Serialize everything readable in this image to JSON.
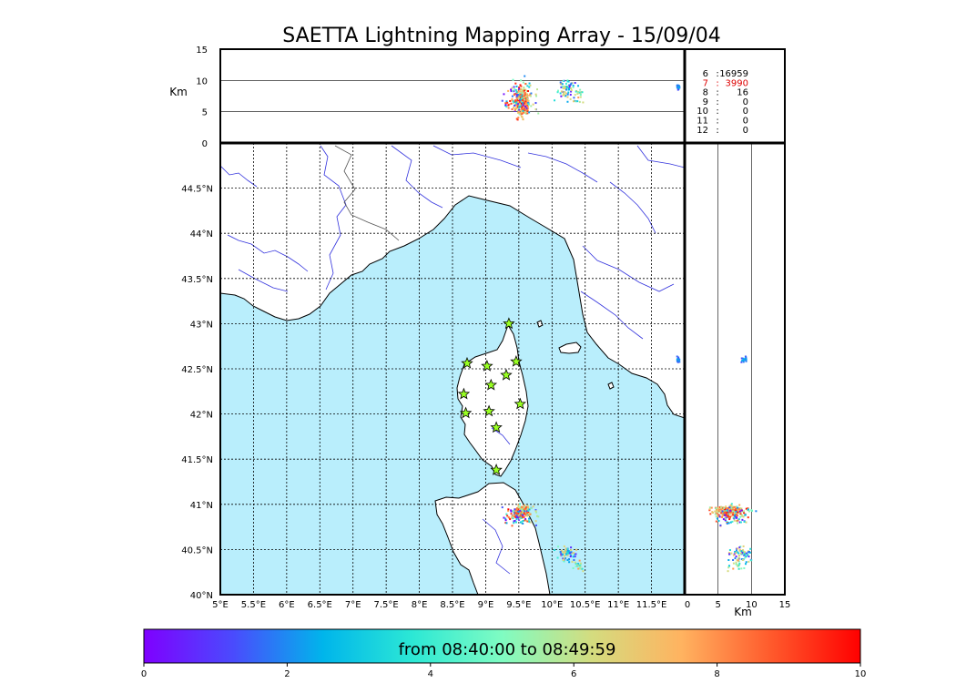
{
  "title": "SAETTA Lightning Mapping Array - 15/09/04",
  "colors": {
    "sea": "#b9eefc",
    "land": "#ffffff",
    "coast": "#000000",
    "rivers": "#3333dd",
    "borders": "#555555",
    "station_fill": "#99ff22",
    "highlight_row": "#dd0000",
    "colormap": [
      "#7f00ff",
      "#4a4bfd",
      "#00b5eb",
      "#2ce8d5",
      "#7ffcc2",
      "#d4dc7f",
      "#ffb360",
      "#ff5a2c",
      "#ff0000"
    ]
  },
  "icons": {
    "station_marker": "star-icon"
  },
  "chart_data": {
    "type": "scatter",
    "map": {
      "x_ticks": [
        "5°E",
        "5.5°E",
        "6°E",
        "6.5°E",
        "7°E",
        "7.5°E",
        "8°E",
        "8.5°E",
        "9°E",
        "9.5°E",
        "10°E",
        "10.5°E",
        "11°E",
        "11.5°E"
      ],
      "y_ticks": [
        "40°N",
        "40.5°N",
        "41°N",
        "41.5°N",
        "42°N",
        "42.5°N",
        "43°N",
        "43.5°N",
        "44°N",
        "44.5°N"
      ],
      "xlim": [
        5.0,
        12.0
      ],
      "ylim": [
        40.0,
        45.0
      ],
      "grid": true
    },
    "alt_panel": {
      "ylabel": "Km",
      "y_ticks": [
        "0",
        "5",
        "10",
        "15"
      ],
      "ylim": [
        0,
        15
      ],
      "lon_range": [
        5.0,
        12.0
      ]
    },
    "side_panel": {
      "xlabel": "Km",
      "x_ticks": [
        "0",
        "5",
        "10",
        "15"
      ],
      "xlim": [
        0,
        15
      ],
      "lat_range": [
        40.0,
        45.0
      ]
    },
    "station_counts": [
      {
        "stations": "6",
        "sep": ":",
        "count": "16959",
        "highlight": false
      },
      {
        "stations": "7",
        "sep": ":",
        "count": "3990",
        "highlight": true
      },
      {
        "stations": "8",
        "sep": ":",
        "count": "16",
        "highlight": false
      },
      {
        "stations": "9",
        "sep": ":",
        "count": "0",
        "highlight": false
      },
      {
        "stations": "10",
        "sep": ":",
        "count": "0",
        "highlight": false
      },
      {
        "stations": "11",
        "sep": ":",
        "count": "0",
        "highlight": false
      },
      {
        "stations": "12",
        "sep": ":",
        "count": "0",
        "highlight": false
      }
    ],
    "stations": [
      {
        "lon": 9.35,
        "lat": 43.0
      },
      {
        "lon": 8.72,
        "lat": 42.56
      },
      {
        "lon": 9.02,
        "lat": 42.53
      },
      {
        "lon": 9.46,
        "lat": 42.58
      },
      {
        "lon": 9.31,
        "lat": 42.43
      },
      {
        "lon": 9.08,
        "lat": 42.32
      },
      {
        "lon": 8.67,
        "lat": 42.22
      },
      {
        "lon": 9.52,
        "lat": 42.11
      },
      {
        "lon": 8.7,
        "lat": 42.01
      },
      {
        "lon": 9.05,
        "lat": 42.03
      },
      {
        "lon": 9.16,
        "lat": 41.85
      },
      {
        "lon": 9.16,
        "lat": 41.38
      }
    ],
    "sources": {
      "color_by": "time (minutes)",
      "clusters": [
        {
          "lon": 9.55,
          "lat": 40.93,
          "alt": 6.5,
          "n": 220,
          "spread_lon": 0.05,
          "spread_lat": 0.025,
          "spread_alt": 2.4,
          "t_min": 5.0,
          "t_max": 10.0
        },
        {
          "lon": 9.52,
          "lat": 40.88,
          "alt": 7.0,
          "n": 120,
          "spread_lon": 0.12,
          "spread_lat": 0.05,
          "spread_alt": 2.5,
          "t_min": 0.0,
          "t_max": 10.0
        },
        {
          "lon": 10.22,
          "lat": 40.45,
          "alt": 8.5,
          "n": 70,
          "spread_lon": 0.07,
          "spread_lat": 0.05,
          "spread_alt": 1.8,
          "t_min": 0.0,
          "t_max": 7.0
        },
        {
          "lon": 10.42,
          "lat": 40.32,
          "alt": 8.0,
          "n": 20,
          "spread_lon": 0.05,
          "spread_lat": 0.03,
          "spread_alt": 1.5,
          "t_min": 2.0,
          "t_max": 8.0
        },
        {
          "lon": 11.9,
          "lat": 42.6,
          "alt": 9.0,
          "n": 18,
          "spread_lon": 0.015,
          "spread_lat": 0.015,
          "spread_alt": 0.5,
          "t_min": 1.0,
          "t_max": 2.5
        }
      ]
    },
    "colorbar": {
      "caption": "from 08:40:00 to 08:49:59",
      "ticks": [
        "0",
        "2",
        "4",
        "6",
        "8",
        "10"
      ],
      "range": [
        0,
        10
      ]
    }
  }
}
